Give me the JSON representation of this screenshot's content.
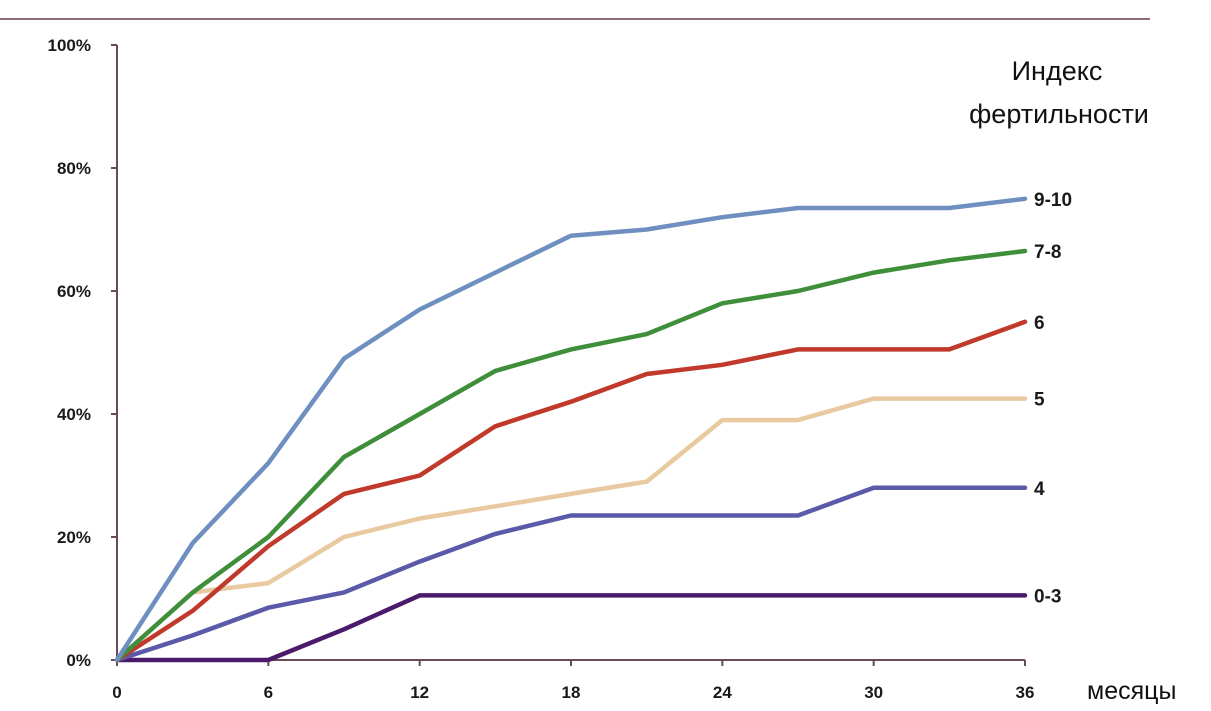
{
  "chart_data": {
    "type": "line",
    "title": "",
    "xlabel": "месяцы",
    "ylabel": "",
    "legend_title": [
      "Индекс",
      "фертильности"
    ],
    "legend_placement": "top-right",
    "x": [
      0,
      3,
      6,
      9,
      12,
      15,
      18,
      21,
      24,
      27,
      30,
      33,
      36
    ],
    "x_ticks": [
      0,
      6,
      12,
      18,
      24,
      30,
      36
    ],
    "x_tick_labels": [
      "0",
      "6",
      "12",
      "18",
      "24",
      "30",
      "36"
    ],
    "y_ticks": [
      0,
      20,
      40,
      60,
      80,
      100
    ],
    "y_tick_labels": [
      "0%",
      "20%",
      "40%",
      "60%",
      "80%",
      "100%"
    ],
    "xlim": [
      0,
      36
    ],
    "ylim": [
      0,
      100
    ],
    "grid": false,
    "series": [
      {
        "name": "9-10",
        "color": "#6f8fc0",
        "values": [
          0,
          19,
          32,
          49,
          57,
          63,
          69,
          70,
          72,
          73.5,
          73.5,
          73.5,
          75
        ]
      },
      {
        "name": "7-8",
        "color": "#3f8f3a",
        "values": [
          0,
          11,
          20,
          33,
          40,
          47,
          50.5,
          53,
          58,
          60,
          63,
          65,
          66.5
        ]
      },
      {
        "name": "6",
        "color": "#c0392b",
        "values": [
          0,
          8,
          18.5,
          27,
          30,
          38,
          42,
          46.5,
          48,
          50.5,
          50.5,
          50.5,
          55
        ]
      },
      {
        "name": "5",
        "color": "#e8c9a0",
        "values": [
          0,
          11,
          12.5,
          20,
          23,
          25,
          27,
          29,
          39,
          39,
          42.5,
          42.5,
          42.5
        ]
      },
      {
        "name": "4",
        "color": "#5a5aa8",
        "values": [
          0,
          4,
          8.5,
          11,
          16,
          20.5,
          23.5,
          23.5,
          23.5,
          23.5,
          28,
          28,
          28
        ]
      },
      {
        "name": "0-3",
        "color": "#4b1a6b",
        "values": [
          0,
          0,
          0,
          5,
          10.5,
          10.5,
          10.5,
          10.5,
          10.5,
          10.5,
          10.5,
          10.5,
          10.5
        ]
      }
    ]
  }
}
